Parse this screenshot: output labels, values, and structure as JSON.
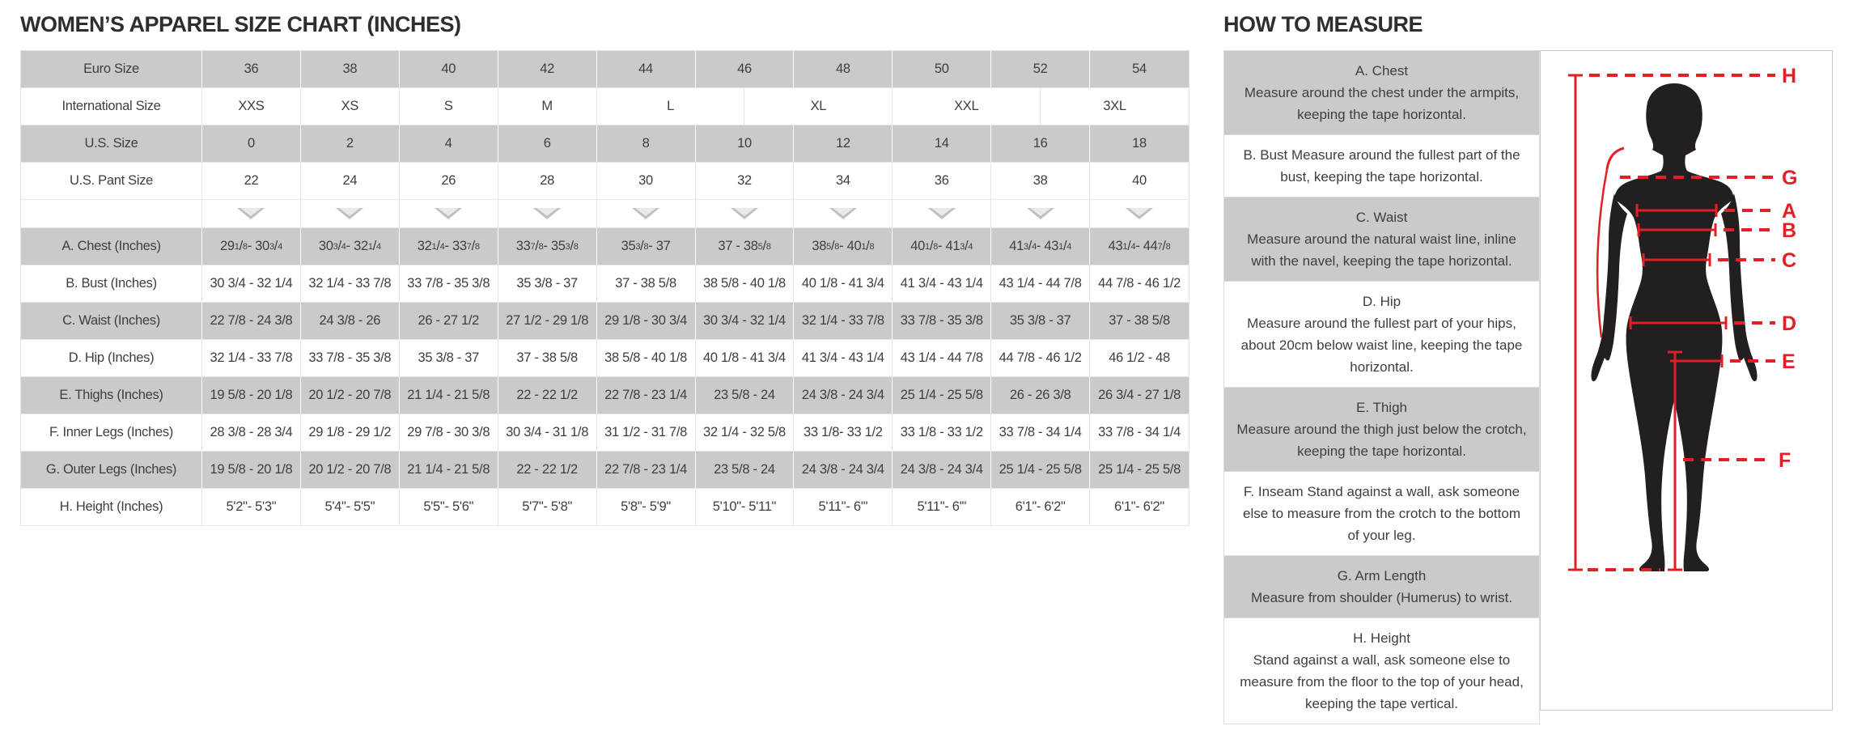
{
  "colors": {
    "shaded_row": "#cacaca",
    "border": "#e2e2e2",
    "text": "#3e3e3e",
    "accent_red": "#e21f26",
    "silhouette_black": "#231f20"
  },
  "size_chart": {
    "title": "WOMEN’S APPAREL SIZE CHART (INCHES)",
    "euro": {
      "label": "Euro Size",
      "values": [
        "36",
        "38",
        "40",
        "42",
        "44",
        "46",
        "48",
        "50",
        "52",
        "54"
      ]
    },
    "international": {
      "label": "International Size",
      "values": [
        "XXS",
        "XS",
        "S",
        "M",
        "L",
        "XL",
        "XXL",
        "3XL"
      ],
      "spans": [
        2,
        2,
        2,
        2,
        3,
        3,
        3,
        3
      ]
    },
    "us": {
      "label": "U.S. Size",
      "values": [
        "0",
        "2",
        "4",
        "6",
        "8",
        "10",
        "12",
        "14",
        "16",
        "18"
      ]
    },
    "us_pant": {
      "label": "U.S. Pant Size",
      "values": [
        "22",
        "24",
        "26",
        "28",
        "30",
        "32",
        "34",
        "36",
        "38",
        "40"
      ]
    },
    "arrow_icon": "triangle-down",
    "measure_rows": [
      {
        "label": "A. Chest (Inches)",
        "fraction_style": "superscript",
        "values": [
          "29 1/8 - 30 3/4",
          "30 3/4 - 32 1/4",
          "32 1/4 - 33 7/8",
          "33 7/8 - 35 3/8",
          "35 3/8 - 37",
          "37 - 38 5/8",
          "38 5/8 - 40 1/8",
          "40 1/8 - 41 3/4",
          "41 3/4 - 43 1/4",
          "43 1/4 - 44 7/8"
        ]
      },
      {
        "label": "B. Bust (Inches)",
        "fraction_style": "plain",
        "values": [
          "30 3/4 - 32 1/4",
          "32 1/4 - 33 7/8",
          "33 7/8 - 35 3/8",
          "35 3/8 - 37",
          "37 - 38 5/8",
          "38 5/8 - 40 1/8",
          "40 1/8 - 41 3/4",
          "41 3/4 - 43 1/4",
          "43 1/4 - 44 7/8",
          "44 7/8 - 46 1/2"
        ]
      },
      {
        "label": "C. Waist (Inches)",
        "fraction_style": "plain",
        "values": [
          "22 7/8 - 24 3/8",
          "24 3/8 - 26",
          "26 - 27 1/2",
          "27 1/2 - 29 1/8",
          "29 1/8 - 30 3/4",
          "30 3/4 - 32 1/4",
          "32 1/4 - 33 7/8",
          "33 7/8 - 35 3/8",
          "35 3/8 - 37",
          "37 - 38 5/8"
        ]
      },
      {
        "label": "D. Hip (Inches)",
        "fraction_style": "plain",
        "values": [
          "32 1/4 - 33 7/8",
          "33 7/8 - 35 3/8",
          "35 3/8 - 37",
          "37 - 38 5/8",
          "38 5/8 - 40 1/8",
          "40 1/8 - 41 3/4",
          "41 3/4 - 43 1/4",
          "43 1/4 - 44 7/8",
          "44 7/8 - 46 1/2",
          "46 1/2 - 48"
        ]
      },
      {
        "label": "E. Thighs (Inches)",
        "fraction_style": "plain",
        "values": [
          "19 5/8 - 20 1/8",
          "20 1/2 - 20 7/8",
          "21 1/4 - 21 5/8",
          "22 - 22 1/2",
          "22 7/8 - 23 1/4",
          "23 5/8 - 24",
          "24 3/8 - 24 3/4",
          "25 1/4 - 25 5/8",
          "26 - 26 3/8",
          "26 3/4 - 27 1/8"
        ]
      },
      {
        "label": "F. Inner Legs (Inches)",
        "fraction_style": "plain",
        "values": [
          "28 3/8 - 28 3/4",
          "29 1/8 - 29 1/2",
          "29 7/8 - 30 3/8",
          "30 3/4 - 31 1/8",
          "31 1/2 - 31 7/8",
          "32 1/4 - 32 5/8",
          "33 1/8- 33 1/2",
          "33 1/8 - 33 1/2",
          "33 7/8 - 34 1/4",
          "33 7/8 - 34 1/4"
        ]
      },
      {
        "label": "G. Outer Legs (Inches)",
        "fraction_style": "plain",
        "values": [
          "19 5/8 - 20 1/8",
          "20 1/2 - 20 7/8",
          "21 1/4 - 21 5/8",
          "22 - 22 1/2",
          "22 7/8 - 23 1/4",
          "23 5/8 - 24",
          "24 3/8 - 24 3/4",
          "24 3/8 - 24 3/4",
          "25 1/4 - 25 5/8",
          "25 1/4 - 25 5/8"
        ]
      },
      {
        "label": "H. Height (Inches)",
        "fraction_style": "plain",
        "values": [
          "5'2\"- 5'3\"",
          "5'4\"- 5'5\"",
          "5'5\"- 5'6\"",
          "5'7\"- 5'8\"",
          "5'8\"- 5'9\"",
          "5'10\"- 5'11\"",
          "5'11\"- 6'\"",
          "5'11\"- 6'\"",
          "6'1\"- 6'2\"",
          "6'1\"- 6'2\""
        ]
      }
    ]
  },
  "how_to_measure": {
    "title": "HOW TO MEASURE",
    "blocks": [
      {
        "heading": "A. Chest",
        "inline_heading": false,
        "shaded": true,
        "text": "Measure around the chest under the armpits, keeping the tape horizontal."
      },
      {
        "heading": "B. Bust",
        "inline_heading": true,
        "shaded": false,
        "text": "Measure around the fullest part of the bust, keeping the tape horizontal."
      },
      {
        "heading": "C. Waist",
        "inline_heading": false,
        "shaded": true,
        "text": "Measure around the natural waist line, inline with the navel, keeping the tape horizontal."
      },
      {
        "heading": "D. Hip",
        "inline_heading": false,
        "shaded": false,
        "text": "Measure around the fullest part of your hips, about 20cm below waist line, keeping the tape horizontal."
      },
      {
        "heading": "E. Thigh",
        "inline_heading": false,
        "shaded": true,
        "text": "Measure around the thigh just below the crotch, keeping the tape horizontal."
      },
      {
        "heading": "F. Inseam",
        "inline_heading": true,
        "shaded": false,
        "text": "Stand against a wall, ask someone else to measure from the crotch to the bottom of your leg."
      },
      {
        "heading": "G. Arm Length",
        "inline_heading": false,
        "shaded": true,
        "text": "Measure from shoulder (Humerus) to wrist."
      },
      {
        "heading": "H. Height",
        "inline_heading": false,
        "shaded": false,
        "text": "Stand against a wall, ask someone else to measure from the floor to the top of your head, keeping the tape vertical."
      }
    ]
  },
  "figure": {
    "panel_labels": [
      "H",
      "G",
      "A",
      "B",
      "C",
      "D",
      "E",
      "F"
    ]
  }
}
